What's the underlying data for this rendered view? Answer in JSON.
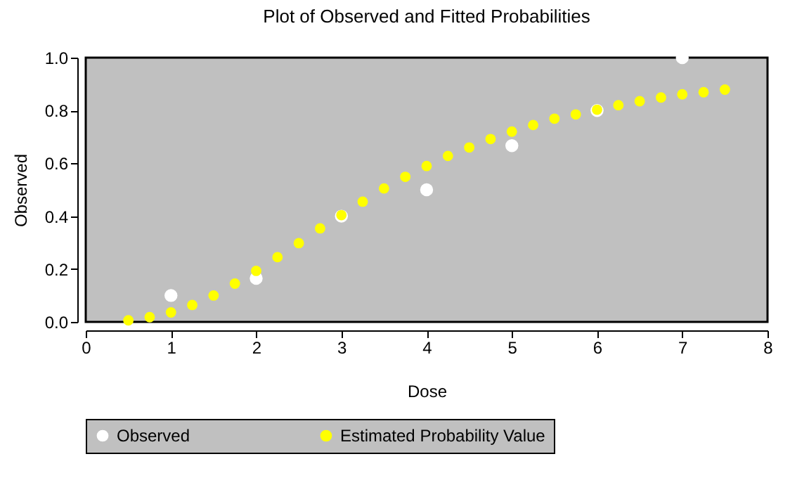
{
  "chart_data": {
    "type": "scatter",
    "title": "Plot of Observed and Fitted Probabilities",
    "xlabel": "Dose",
    "ylabel": "Observed",
    "xlim": [
      0,
      8
    ],
    "xticks": [
      0,
      1,
      2,
      3,
      4,
      5,
      6,
      7,
      8
    ],
    "ylim": [
      0,
      1
    ],
    "yticks": [
      {
        "value": 0,
        "label": "0.0"
      },
      {
        "value": 0.2,
        "label": "0.2"
      },
      {
        "value": 0.4,
        "label": "0.4"
      },
      {
        "value": 0.6,
        "label": "0.6"
      },
      {
        "value": 0.8,
        "label": "0.8"
      },
      {
        "value": 1,
        "label": "1.0"
      }
    ],
    "grid": false,
    "legend": "bottom",
    "marker": "circle",
    "series": [
      {
        "name": "Observed",
        "color": "#ffffff",
        "x": [
          1,
          2,
          3,
          4,
          5,
          6,
          7
        ],
        "values": [
          0.1,
          0.165,
          0.4,
          0.5,
          0.667,
          0.8,
          1.0
        ]
      },
      {
        "name": "Estimated Probability Value",
        "color": "#ffff00",
        "x": [
          0.5,
          0.75,
          1,
          1.25,
          1.5,
          1.75,
          2,
          2.25,
          2.5,
          2.75,
          3,
          3.25,
          3.5,
          3.75,
          4,
          4.25,
          4.5,
          4.75,
          5,
          5.25,
          5.5,
          5.75,
          6,
          6.25,
          6.5,
          6.75,
          7,
          7.25,
          7.5
        ],
        "values": [
          0.006,
          0.018,
          0.036,
          0.064,
          0.1,
          0.145,
          0.193,
          0.245,
          0.298,
          0.354,
          0.404,
          0.455,
          0.505,
          0.549,
          0.59,
          0.628,
          0.66,
          0.692,
          0.72,
          0.745,
          0.769,
          0.785,
          0.803,
          0.82,
          0.835,
          0.849,
          0.861,
          0.869,
          0.879
        ]
      }
    ]
  }
}
